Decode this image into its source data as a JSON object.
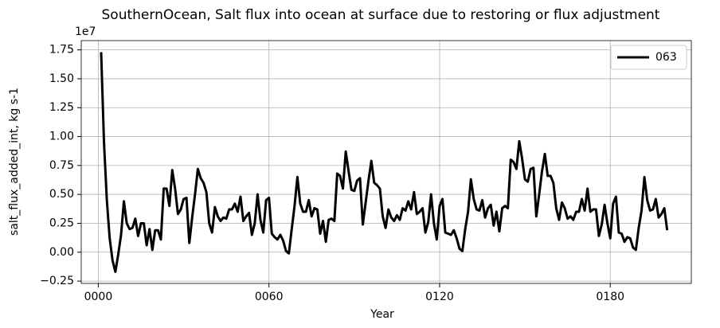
{
  "chart_data": {
    "type": "line",
    "title": "SouthernOcean, Salt flux into ocean at surface due to restoring or flux adjustment",
    "xlabel": "Year",
    "ylabel": "salt_flux_added_int, kg s-1",
    "offset_label": "1e7",
    "x": [
      1,
      2,
      3,
      4,
      5,
      6,
      7,
      8,
      9,
      10,
      11,
      12,
      13,
      14,
      15,
      16,
      17,
      18,
      19,
      20,
      21,
      22,
      23,
      24,
      25,
      26,
      27,
      28,
      29,
      30,
      31,
      32,
      33,
      34,
      35,
      36,
      37,
      38,
      39,
      40,
      41,
      42,
      43,
      44,
      45,
      46,
      47,
      48,
      49,
      50,
      51,
      52,
      53,
      54,
      55,
      56,
      57,
      58,
      59,
      60,
      61,
      62,
      63,
      64,
      65,
      66,
      67,
      68,
      69,
      70,
      71,
      72,
      73,
      74,
      75,
      76,
      77,
      78,
      79,
      80,
      81,
      82,
      83,
      84,
      85,
      86,
      87,
      88,
      89,
      90,
      91,
      92,
      93,
      94,
      95,
      96,
      97,
      98,
      99,
      100,
      101,
      102,
      103,
      104,
      105,
      106,
      107,
      108,
      109,
      110,
      111,
      112,
      113,
      114,
      115,
      116,
      117,
      118,
      119,
      120,
      121,
      122,
      123,
      124,
      125,
      126,
      127,
      128,
      129,
      130,
      131,
      132,
      133,
      134,
      135,
      136,
      137,
      138,
      139,
      140,
      141,
      142,
      143,
      144,
      145,
      146,
      147,
      148,
      149,
      150,
      151,
      152,
      153,
      154,
      155,
      156,
      157,
      158,
      159,
      160,
      161,
      162,
      163,
      164,
      165,
      166,
      167,
      168,
      169,
      170,
      171,
      172,
      173,
      174,
      175,
      176,
      177,
      178,
      179,
      180,
      181,
      182,
      183,
      184,
      185,
      186,
      187,
      188,
      189,
      190,
      191,
      192,
      193,
      194,
      195,
      196,
      197,
      198,
      199,
      200
    ],
    "series": [
      {
        "name": "063",
        "color": "#000000",
        "values": [
          1.73,
          0.95,
          0.45,
          0.12,
          -0.07,
          -0.17,
          -0.02,
          0.15,
          0.44,
          0.25,
          0.2,
          0.21,
          0.29,
          0.14,
          0.25,
          0.25,
          0.06,
          0.2,
          0.02,
          0.19,
          0.19,
          0.11,
          0.55,
          0.55,
          0.4,
          0.71,
          0.55,
          0.33,
          0.37,
          0.46,
          0.47,
          0.08,
          0.3,
          0.5,
          0.72,
          0.64,
          0.6,
          0.52,
          0.25,
          0.17,
          0.39,
          0.31,
          0.27,
          0.3,
          0.29,
          0.37,
          0.37,
          0.42,
          0.35,
          0.48,
          0.27,
          0.31,
          0.34,
          0.15,
          0.25,
          0.5,
          0.28,
          0.17,
          0.45,
          0.47,
          0.16,
          0.13,
          0.11,
          0.15,
          0.1,
          0.01,
          -0.01,
          0.2,
          0.4,
          0.65,
          0.42,
          0.35,
          0.35,
          0.45,
          0.31,
          0.38,
          0.37,
          0.16,
          0.27,
          0.09,
          0.28,
          0.29,
          0.27,
          0.68,
          0.66,
          0.55,
          0.87,
          0.7,
          0.54,
          0.53,
          0.62,
          0.64,
          0.24,
          0.43,
          0.62,
          0.79,
          0.6,
          0.58,
          0.55,
          0.31,
          0.21,
          0.37,
          0.3,
          0.27,
          0.32,
          0.28,
          0.38,
          0.36,
          0.44,
          0.37,
          0.52,
          0.33,
          0.35,
          0.38,
          0.17,
          0.26,
          0.5,
          0.25,
          0.11,
          0.4,
          0.46,
          0.17,
          0.16,
          0.15,
          0.19,
          0.12,
          0.03,
          0.01,
          0.2,
          0.35,
          0.63,
          0.46,
          0.37,
          0.36,
          0.45,
          0.3,
          0.38,
          0.41,
          0.23,
          0.35,
          0.18,
          0.38,
          0.4,
          0.38,
          0.8,
          0.78,
          0.72,
          0.96,
          0.81,
          0.63,
          0.61,
          0.72,
          0.73,
          0.31,
          0.5,
          0.7,
          0.85,
          0.66,
          0.66,
          0.6,
          0.38,
          0.28,
          0.43,
          0.38,
          0.29,
          0.31,
          0.28,
          0.35,
          0.35,
          0.46,
          0.36,
          0.55,
          0.35,
          0.37,
          0.37,
          0.14,
          0.24,
          0.41,
          0.25,
          0.12,
          0.42,
          0.48,
          0.17,
          0.16,
          0.09,
          0.13,
          0.12,
          0.04,
          0.02,
          0.21,
          0.36,
          0.65,
          0.45,
          0.36,
          0.37,
          0.46,
          0.3,
          0.33,
          0.38,
          0.19
        ]
      }
    ],
    "xlim": [
      -6,
      208.5
    ],
    "ylim": [
      -0.27,
      1.83
    ],
    "xticks": [
      {
        "value": 0,
        "label": "0000"
      },
      {
        "value": 60,
        "label": "0060"
      },
      {
        "value": 120,
        "label": "0120"
      },
      {
        "value": 180,
        "label": "0180"
      }
    ],
    "yticks": [
      {
        "value": -0.25,
        "label": "−0.25"
      },
      {
        "value": 0,
        "label": "0.00"
      },
      0.25,
      {
        "value": 0.5,
        "label": "0.50"
      },
      0.75,
      {
        "value": 1,
        "label": "1.00"
      },
      1.25,
      {
        "value": 1.5,
        "label": "1.50"
      },
      1.75
    ],
    "grid": true,
    "legend": "upper right"
  }
}
